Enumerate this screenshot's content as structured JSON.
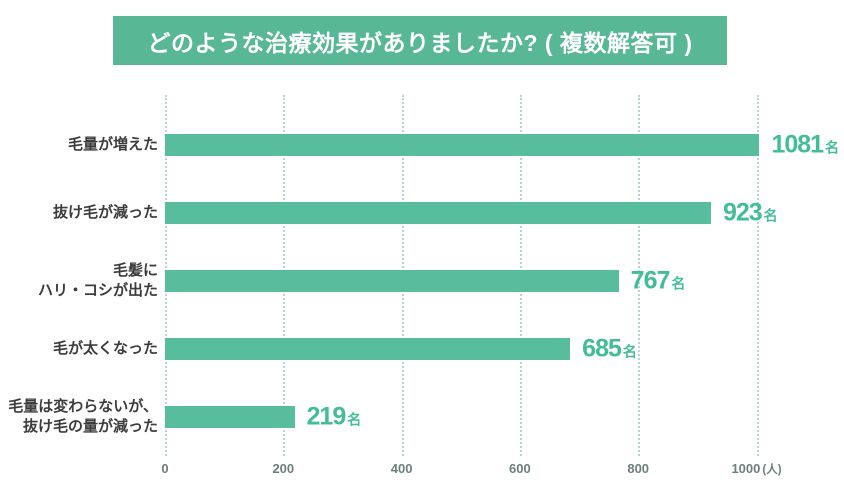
{
  "title": "どのような治療効果がありましたか? ( 複数解答可 )",
  "colors": {
    "banner_bg": "#58b795",
    "title_text": "#ffffff",
    "bar": "#57bd9c",
    "value_text": "#43bd98",
    "grid_line": "#b3d9ca",
    "axis_text": "#6e7e7c",
    "category_text": "#3c3c3c",
    "background": "#ffffff"
  },
  "chart_data": {
    "type": "bar",
    "orientation": "horizontal",
    "title": "どのような治療効果がありましたか? ( 複数解答可 )",
    "categories": [
      "毛量が増えた",
      "抜け毛が減った",
      "毛髪に\nハリ・コシが出た",
      "毛が太くなった",
      "毛量は変わらないが、\n抜け毛の量が減った"
    ],
    "values": [
      1081,
      923,
      767,
      685,
      219
    ],
    "value_suffix": "名",
    "x_ticks": [
      0,
      200,
      400,
      600,
      800,
      1000
    ],
    "x_axis_unit": "(人)",
    "xlim": [
      0,
      1150
    ],
    "grid": "dotted-vertical",
    "legend": "none"
  }
}
